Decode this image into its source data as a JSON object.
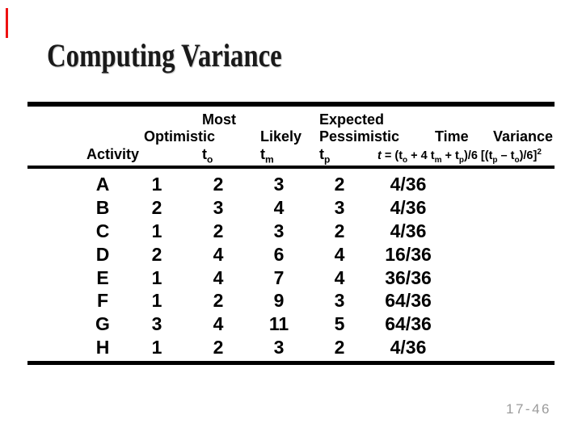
{
  "slide": {
    "title": "Computing Variance",
    "page_number": "17-46",
    "accent_mark_color": "#ee1111",
    "rule_color": "#000000",
    "footer_color": "#9b9b9b"
  },
  "table": {
    "header": {
      "most": "Most",
      "expected": "Expected",
      "optimistic": "Optimistic",
      "likely": "Likely",
      "pessimistic": "Pessimistic",
      "time": "Time",
      "variance": "Variance",
      "activity": "Activity",
      "t_base": "t",
      "sub_o": "o",
      "sub_m": "m",
      "sub_p": "p",
      "formula": {
        "t": "t",
        "seg1": " = (t",
        "sub1": "o",
        "seg2": " + 4 t",
        "sub2": "m",
        "seg3": " + t",
        "sub3": "p",
        "seg4": ")/6 [(t",
        "sub4": "p",
        "seg5": " – t",
        "sub5": "o",
        "seg6": ")/6]",
        "sup": "2"
      }
    },
    "rows": [
      [
        "A",
        "1",
        "2",
        "3",
        "2",
        "4/36"
      ],
      [
        "B",
        "2",
        "3",
        "4",
        "3",
        "4/36"
      ],
      [
        "C",
        "1",
        "2",
        "3",
        "2",
        "4/36"
      ],
      [
        "D",
        "2",
        "4",
        "6",
        "4",
        "16/36"
      ],
      [
        "E",
        "1",
        "4",
        "7",
        "4",
        "36/36"
      ],
      [
        "F",
        "1",
        "2",
        "9",
        "3",
        "64/36"
      ],
      [
        "G",
        "3",
        "4",
        "11",
        "5",
        "64/36"
      ],
      [
        "H",
        "1",
        "2",
        "3",
        "2",
        "4/36"
      ]
    ]
  }
}
